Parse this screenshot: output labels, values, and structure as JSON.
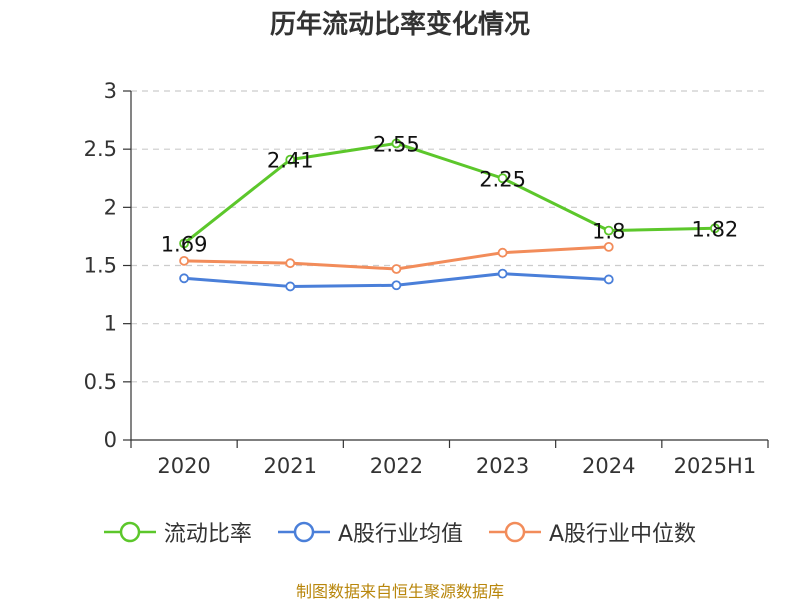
{
  "chart_data": {
    "type": "line",
    "title": "历年流动比率变化情况",
    "categories": [
      "2020",
      "2021",
      "2022",
      "2023",
      "2024",
      "2025H1"
    ],
    "ylim": [
      0,
      3
    ],
    "yticks": [
      0,
      0.5,
      1,
      1.5,
      2,
      2.5,
      3
    ],
    "ytick_labels": [
      "0",
      "0.5",
      "1",
      "1.5",
      "2",
      "2.5",
      "3"
    ],
    "grid": true,
    "legend_position": "bottom",
    "series": [
      {
        "name": "流动比率",
        "color": "#5cc72b",
        "values": [
          1.69,
          2.41,
          2.55,
          2.25,
          1.8,
          1.82
        ],
        "labels": [
          "1.69",
          "2.41",
          "2.55",
          "2.25",
          "1.8",
          "1.82"
        ]
      },
      {
        "name": "A股行业均值",
        "color": "#4a7fd9",
        "values": [
          1.39,
          1.32,
          1.33,
          1.43,
          1.38,
          null
        ]
      },
      {
        "name": "A股行业中位数",
        "color": "#f28c5a",
        "values": [
          1.54,
          1.52,
          1.47,
          1.61,
          1.66,
          null
        ]
      }
    ],
    "source": "制图数据来自恒生聚源数据库"
  }
}
